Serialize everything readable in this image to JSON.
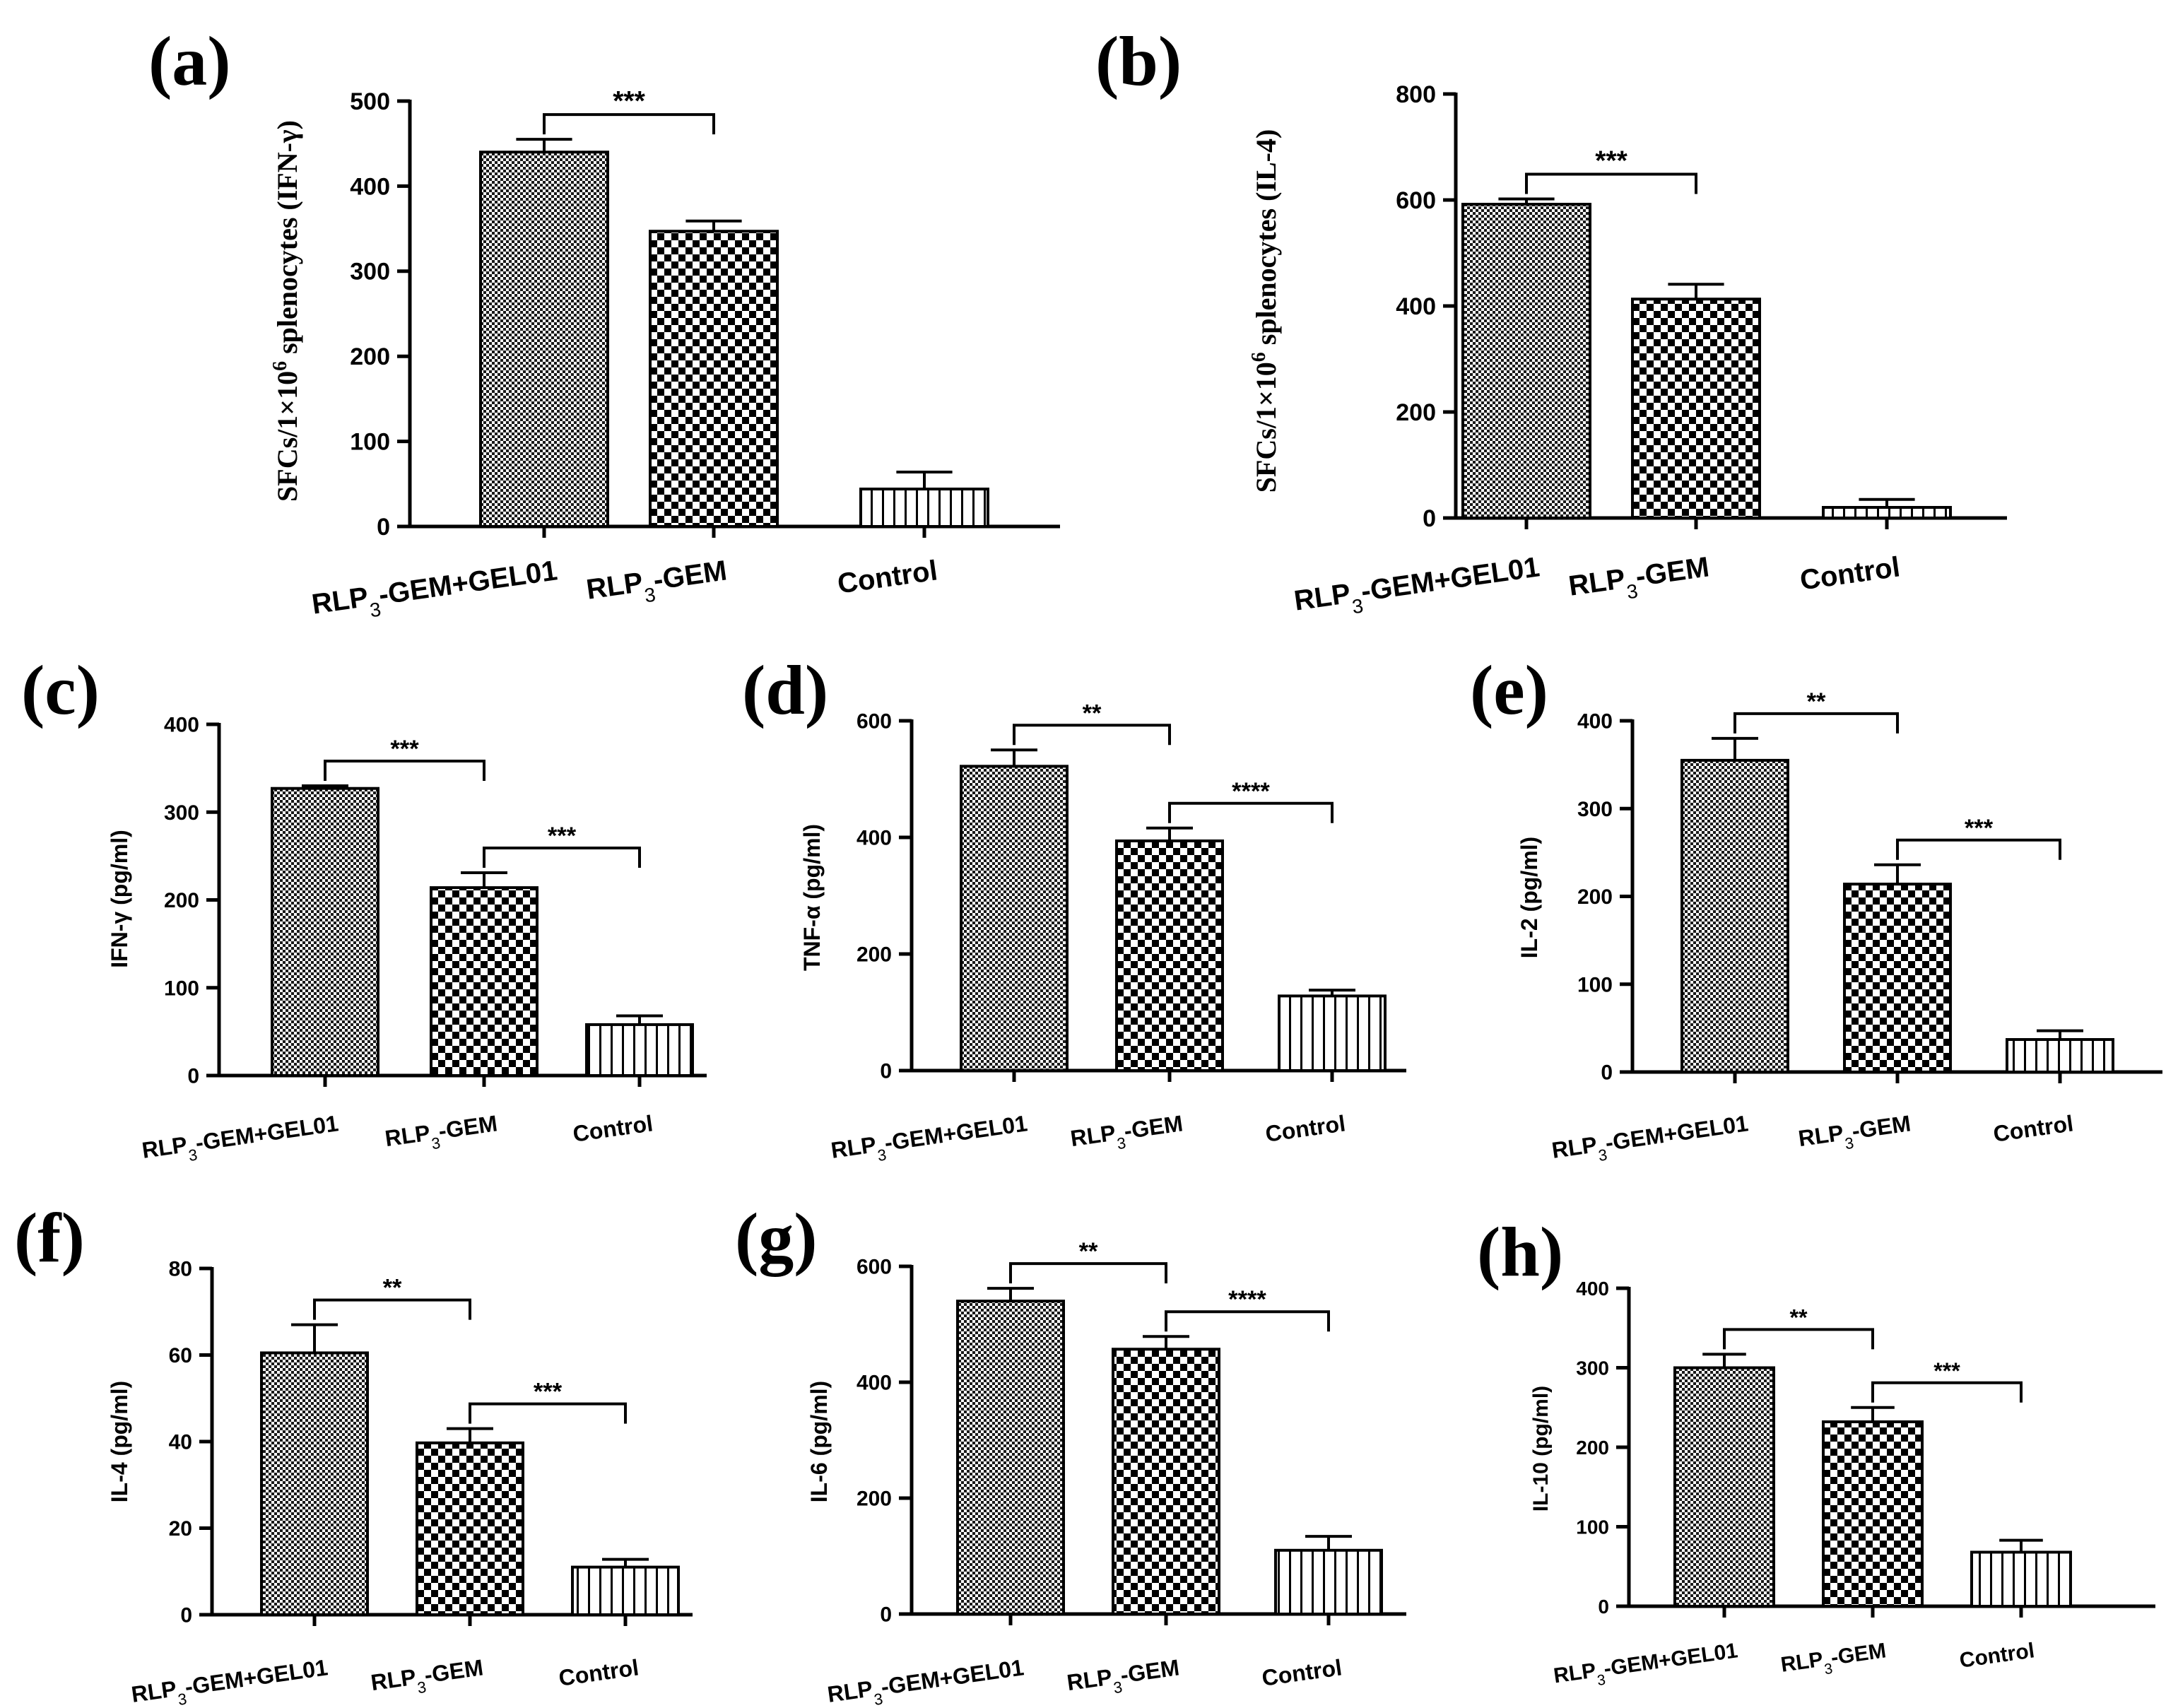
{
  "figure_title": "",
  "chart_data": [
    {
      "panel": "(a)",
      "type": "bar",
      "ylabel_main": "SFCs/1×10",
      "ylabel_sup": "6",
      "ylabel_rest": " splenocytes (IFN-γ)",
      "categories": [
        "RLP3-GEM+GEL01",
        "RLP3-GEM",
        "Control"
      ],
      "values": [
        440,
        347,
        44
      ],
      "errors": [
        15,
        12,
        20
      ],
      "ylim": [
        0,
        500
      ],
      "yticks": [
        0,
        100,
        200,
        300,
        400,
        500
      ],
      "significance": [
        {
          "from": 0,
          "to": 1,
          "label": "***"
        }
      ]
    },
    {
      "panel": "(b)",
      "type": "bar",
      "ylabel_main": "SFCs/1×10",
      "ylabel_sup": "6",
      "ylabel_rest": " splenocytes (IL-4)",
      "categories": [
        "RLP3-GEM+GEL01",
        "RLP3-GEM",
        "Control"
      ],
      "values": [
        592,
        413,
        20
      ],
      "errors": [
        10,
        28,
        15
      ],
      "ylim": [
        0,
        800
      ],
      "yticks": [
        0,
        200,
        400,
        600,
        800
      ],
      "significance": [
        {
          "from": 0,
          "to": 1,
          "label": "***"
        }
      ]
    },
    {
      "panel": "(c)",
      "type": "bar",
      "ylabel": "IFN-γ (pg/ml)",
      "categories": [
        "RLP3-GEM+GEL01",
        "RLP3-GEM",
        "Control"
      ],
      "values": [
        327,
        214,
        58
      ],
      "errors": [
        3,
        17,
        10
      ],
      "ylim": [
        0,
        400
      ],
      "yticks": [
        0,
        100,
        200,
        300,
        400
      ],
      "significance": [
        {
          "from": 0,
          "to": 1,
          "label": "***"
        },
        {
          "from": 1,
          "to": 2,
          "label": "***"
        }
      ]
    },
    {
      "panel": "(d)",
      "type": "bar",
      "ylabel": "TNF-α (pg/ml)",
      "categories": [
        "RLP3-GEM+GEL01",
        "RLP3-GEM",
        "Control"
      ],
      "values": [
        522,
        394,
        128
      ],
      "errors": [
        28,
        22,
        10
      ],
      "ylim": [
        0,
        600
      ],
      "yticks": [
        0,
        200,
        400,
        600
      ],
      "significance": [
        {
          "from": 0,
          "to": 1,
          "label": "**"
        },
        {
          "from": 1,
          "to": 2,
          "label": "****"
        }
      ]
    },
    {
      "panel": "(e)",
      "type": "bar",
      "ylabel": "IL-2 (pg/ml)",
      "categories": [
        "RLP3-GEM+GEL01",
        "RLP3-GEM",
        "Control"
      ],
      "values": [
        355,
        214,
        37
      ],
      "errors": [
        25,
        22,
        10
      ],
      "ylim": [
        0,
        400
      ],
      "yticks": [
        0,
        100,
        200,
        300,
        400
      ],
      "significance": [
        {
          "from": 0,
          "to": 1,
          "label": "**"
        },
        {
          "from": 1,
          "to": 2,
          "label": "***"
        }
      ]
    },
    {
      "panel": "(f)",
      "type": "bar",
      "ylabel": "IL-4 (pg/ml)",
      "categories": [
        "RLP3-GEM+GEL01",
        "RLP3-GEM",
        "Control"
      ],
      "values": [
        60.5,
        39.7,
        11
      ],
      "errors": [
        6.5,
        3.3,
        1.8
      ],
      "ylim": [
        0,
        80
      ],
      "yticks": [
        0,
        20,
        40,
        60,
        80
      ],
      "significance": [
        {
          "from": 0,
          "to": 1,
          "label": "**"
        },
        {
          "from": 1,
          "to": 2,
          "label": "***"
        }
      ]
    },
    {
      "panel": "(g)",
      "type": "bar",
      "ylabel": "IL-6 (pg/ml)",
      "categories": [
        "RLP3-GEM+GEL01",
        "RLP3-GEM",
        "Control"
      ],
      "values": [
        540,
        457,
        110
      ],
      "errors": [
        22,
        22,
        24
      ],
      "ylim": [
        0,
        600
      ],
      "yticks": [
        0,
        200,
        400,
        600
      ],
      "significance": [
        {
          "from": 0,
          "to": 1,
          "label": "**"
        },
        {
          "from": 1,
          "to": 2,
          "label": "****"
        }
      ]
    },
    {
      "panel": "(h)",
      "type": "bar",
      "ylabel": "IL-10 (pg/ml)",
      "categories": [
        "RLP3-GEM+GEL01",
        "RLP3-GEM",
        "Control"
      ],
      "values": [
        300,
        232,
        68
      ],
      "errors": [
        17,
        18,
        15
      ],
      "ylim": [
        0,
        400
      ],
      "yticks": [
        0,
        100,
        200,
        300,
        400
      ],
      "significance": [
        {
          "from": 0,
          "to": 1,
          "label": "**"
        },
        {
          "from": 1,
          "to": 2,
          "label": "***"
        }
      ]
    }
  ]
}
